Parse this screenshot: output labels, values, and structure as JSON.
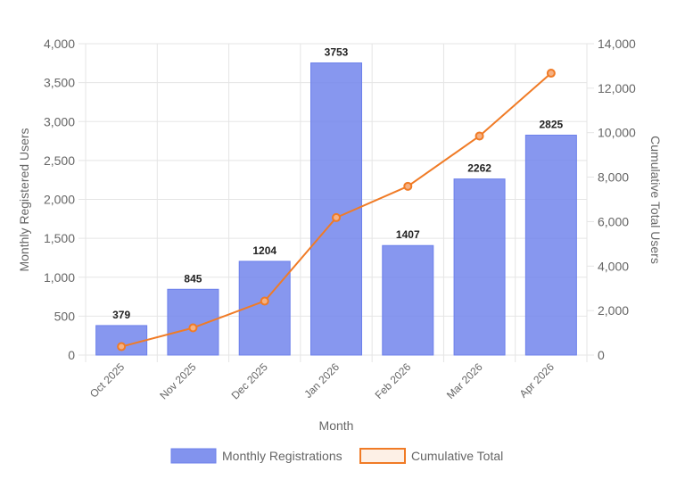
{
  "chart_data": {
    "type": "bar",
    "categories": [
      "Oct 2025",
      "Nov 2025",
      "Dec 2025",
      "Jan 2026",
      "Feb 2026",
      "Mar 2026",
      "Apr 2026"
    ],
    "series": [
      {
        "name": "Monthly Registrations",
        "type": "bar",
        "axis": "left",
        "color": "#7b8ff0",
        "values": [
          379,
          845,
          1204,
          3753,
          1407,
          2262,
          2825
        ]
      },
      {
        "name": "Cumulative Total",
        "type": "line",
        "axis": "right",
        "color": "#f07b26",
        "values": [
          379,
          1224,
          2428,
          6181,
          7588,
          9850,
          12675
        ]
      }
    ],
    "xlabel": "Month",
    "ylabel_left": "Monthly Registered Users",
    "ylabel_right": "Cumulative Total Users",
    "ylim_left": [
      0,
      4000
    ],
    "ylim_right": [
      0,
      14000
    ],
    "yticks_left": [
      "0",
      "500",
      "1,000",
      "1,500",
      "2,000",
      "2,500",
      "3,000",
      "3,500",
      "4,000"
    ],
    "yticks_right": [
      "0",
      "2,000",
      "4,000",
      "6,000",
      "8,000",
      "10,000",
      "12,000",
      "14,000"
    ],
    "data_labels": [
      "379",
      "845",
      "1204",
      "3753",
      "1407",
      "2262",
      "2825"
    ],
    "grid": true,
    "legend_position": "bottom"
  }
}
